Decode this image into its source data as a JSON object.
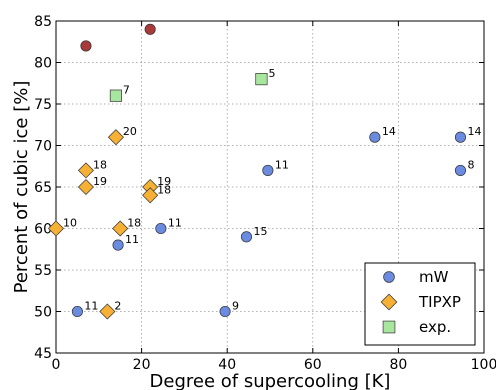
{
  "chart_data": {
    "type": "scatter",
    "xlabel": "Degree of supercooling [K]",
    "ylabel": "Percent of cubic ice [%]",
    "xlim": [
      0,
      100
    ],
    "ylim": [
      45,
      85
    ],
    "xticks": [
      "0",
      "20",
      "40",
      "60",
      "80",
      "100"
    ],
    "yticks": [
      "45",
      "50",
      "55",
      "60",
      "65",
      "70",
      "75",
      "80",
      "85"
    ],
    "grid": true,
    "legend_position": "bottom-right",
    "series": [
      {
        "name": "mW",
        "marker": "circle",
        "color": "#6b8be0",
        "points": [
          {
            "x": 5,
            "y": 50,
            "label": "11"
          },
          {
            "x": 14.5,
            "y": 58,
            "label": "11"
          },
          {
            "x": 24.5,
            "y": 60,
            "label": "11"
          },
          {
            "x": 39.5,
            "y": 50,
            "label": "9"
          },
          {
            "x": 44.5,
            "y": 59,
            "label": "15"
          },
          {
            "x": 49.5,
            "y": 67,
            "label": "11"
          },
          {
            "x": 74.5,
            "y": 71,
            "label": "14"
          },
          {
            "x": 94.5,
            "y": 71,
            "label": "14"
          },
          {
            "x": 94.5,
            "y": 67,
            "label": "8"
          }
        ]
      },
      {
        "name": "TIPXP",
        "marker": "diamond",
        "color": "#f5b035",
        "points": [
          {
            "x": 0,
            "y": 60,
            "label": "10"
          },
          {
            "x": 7,
            "y": 67,
            "label": "18"
          },
          {
            "x": 7,
            "y": 65,
            "label": "19"
          },
          {
            "x": 12,
            "y": 50,
            "label": "2"
          },
          {
            "x": 14,
            "y": 71,
            "label": "20"
          },
          {
            "x": 15,
            "y": 60,
            "label": "18"
          },
          {
            "x": 22,
            "y": 65,
            "label": "19"
          },
          {
            "x": 22,
            "y": 64,
            "label": "18"
          }
        ]
      },
      {
        "name": "exp.",
        "marker": "square",
        "color": "#a8e6a0",
        "points": [
          {
            "x": 14,
            "y": 76,
            "label": "7"
          },
          {
            "x": 48,
            "y": 78,
            "label": "5"
          }
        ]
      },
      {
        "name": "",
        "marker": "circle",
        "color": "#a83a3a",
        "in_legend": false,
        "points": [
          {
            "x": 7,
            "y": 82,
            "label": ""
          },
          {
            "x": 22,
            "y": 84,
            "label": ""
          }
        ]
      }
    ]
  }
}
